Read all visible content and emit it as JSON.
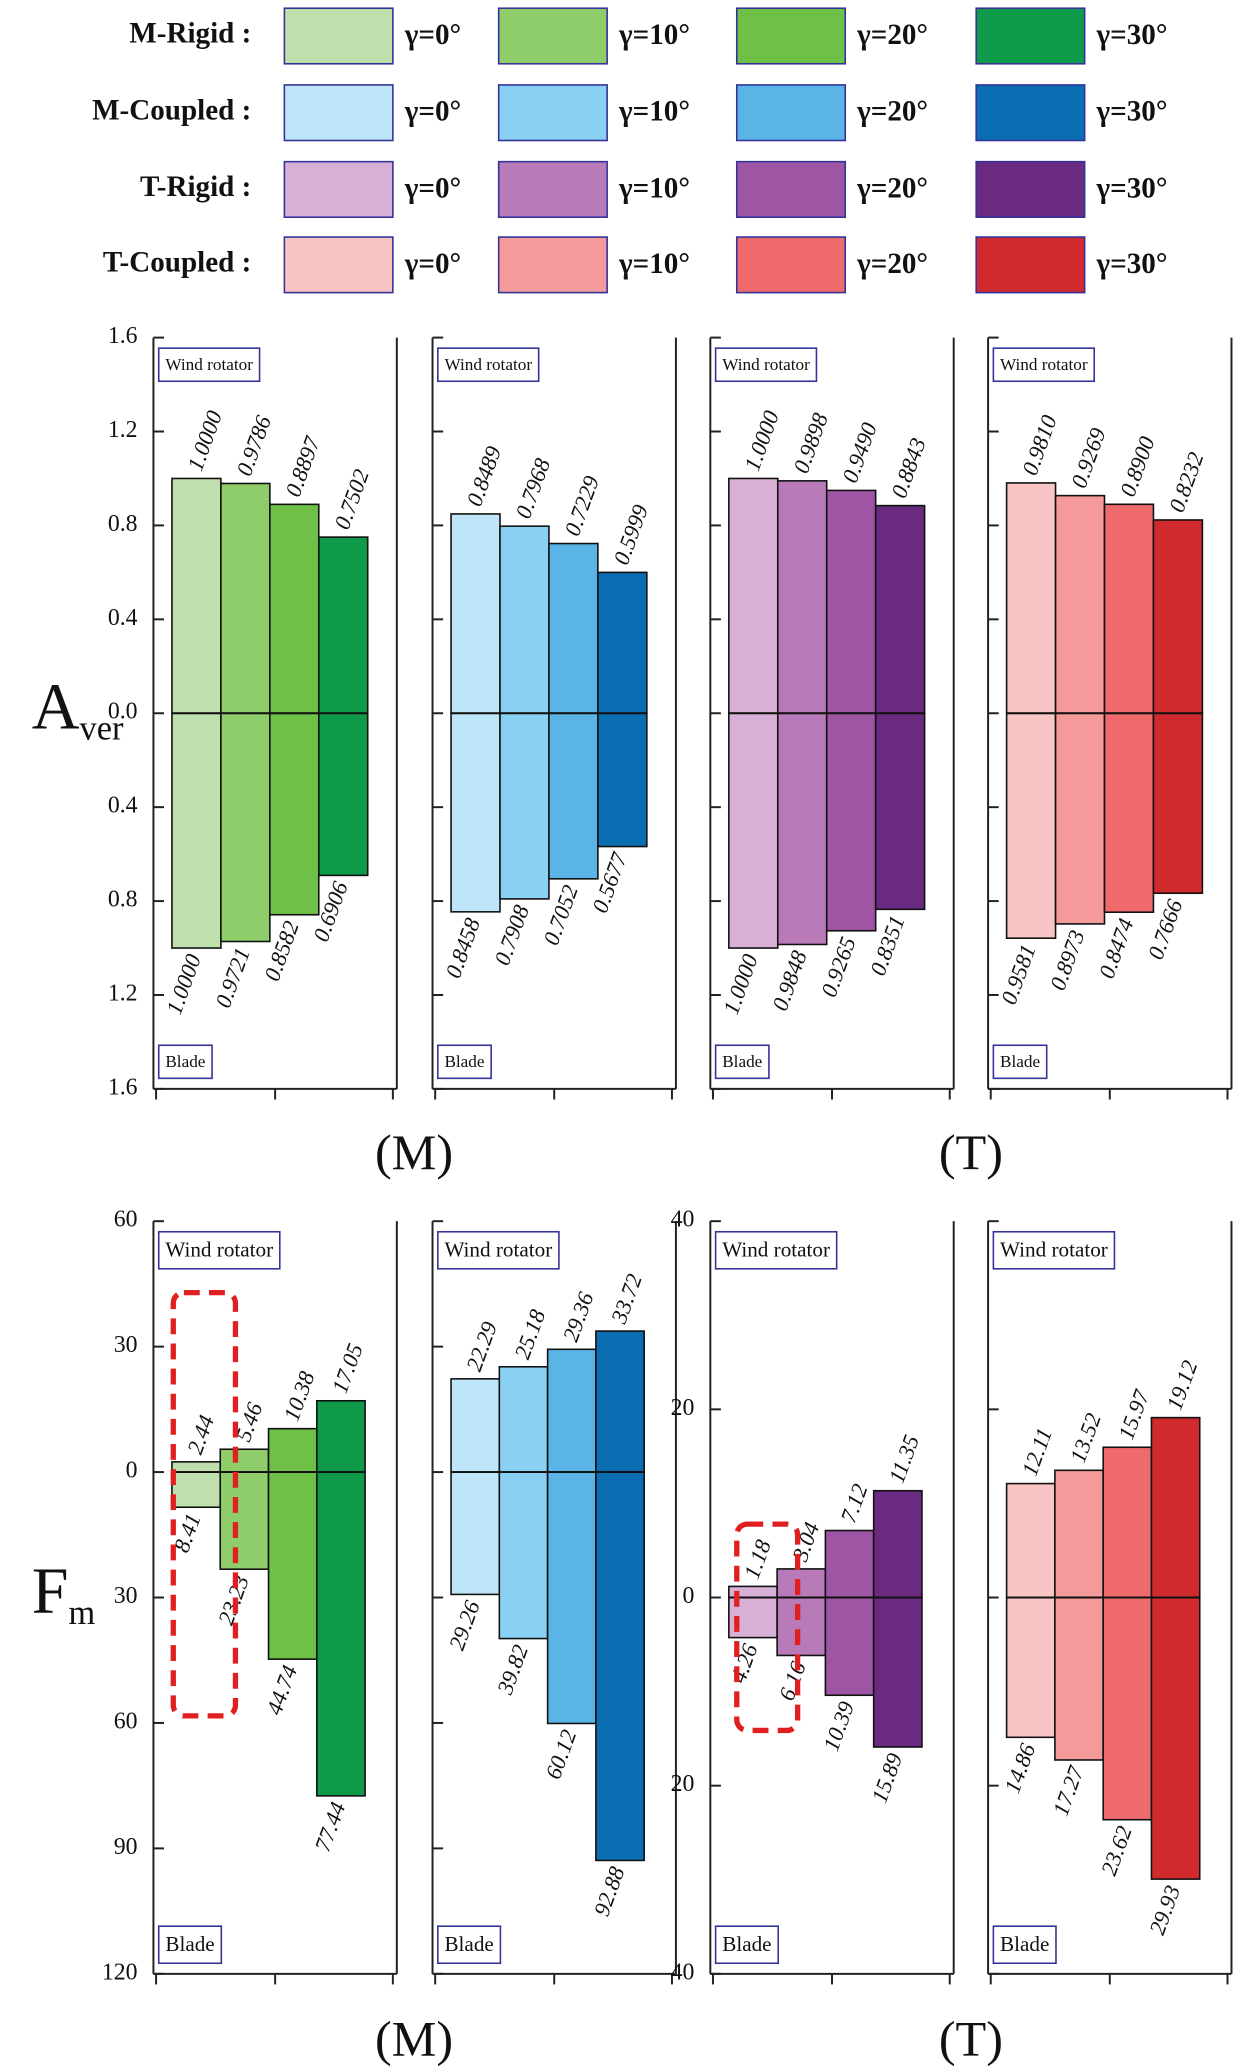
{
  "legend_title": null,
  "chart_data": [
    {
      "type": "bar",
      "name": "M-Rigid :",
      "ylabel": "A",
      "ylabel_sub": "ver",
      "xlabel": "(M)",
      "categories": [
        "Wind rotator",
        "Blade"
      ],
      "ylim": [
        -1.6,
        1.6
      ],
      "yticks": [
        1.6,
        1.2,
        0.8,
        0.4,
        {
          "value": 0,
          "label": "0.0"
        },
        {
          "value": -0.4,
          "label": "0.4"
        },
        {
          "value": -0.8,
          "label": "0.8"
        },
        {
          "value": -1.2,
          "label": "1.2"
        },
        {
          "value": -1.6,
          "label": "1.6"
        }
      ],
      "series": [
        {
          "name": "γ=0°",
          "color": "#bfe0ad",
          "values": [
            1,
            -1
          ],
          "value_labels": [
            "1.0000",
            "1.0000"
          ]
        },
        {
          "name": "γ=10°",
          "color": "#8fcc6a",
          "values": [
            0.9786,
            -0.9721
          ],
          "value_labels": [
            "0.9786",
            "0.9721"
          ]
        },
        {
          "name": "γ=20°",
          "color": "#6ec046",
          "values": [
            0.8897,
            -0.8582
          ],
          "value_labels": [
            "0.8897",
            "0.8582"
          ]
        },
        {
          "name": "γ=30°",
          "color": "#0e9a48",
          "values": [
            0.7502,
            -0.6906
          ],
          "value_labels": [
            "0.7502",
            "0.6906"
          ]
        }
      ]
    },
    {
      "type": "bar",
      "name": "M-Coupled :",
      "categories": [
        "Wind rotator",
        "Blade"
      ],
      "ylim": [
        -1.6,
        1.6
      ],
      "series": [
        {
          "name": "γ=0°",
          "color": "#bfe5f8",
          "values": [
            0.8489,
            -0.8458
          ],
          "value_labels": [
            "0.8489",
            "0.8458"
          ]
        },
        {
          "name": "γ=10°",
          "color": "#8ad0f2",
          "values": [
            0.7968,
            -0.7908
          ],
          "value_labels": [
            "0.7968",
            "0.7908"
          ]
        },
        {
          "name": "γ=20°",
          "color": "#5ab4e6",
          "values": [
            0.7229,
            -0.7052
          ],
          "value_labels": [
            "0.7229",
            "0.7052"
          ]
        },
        {
          "name": "γ=30°",
          "color": "#0b6db2",
          "values": [
            0.5999,
            -0.5677
          ],
          "value_labels": [
            "0.5999",
            "0.5677"
          ]
        }
      ]
    },
    {
      "type": "bar",
      "name": "T-Rigid :",
      "xlabel": "(T)",
      "categories": [
        "Wind rotator",
        "Blade"
      ],
      "ylim": [
        -1.6,
        1.6
      ],
      "series": [
        {
          "name": "γ=0°",
          "color": "#d8b0d6",
          "values": [
            1,
            -1
          ],
          "value_labels": [
            "1.0000",
            "1.0000"
          ]
        },
        {
          "name": "γ=10°",
          "color": "#b87ab8",
          "values": [
            0.9898,
            -0.9848
          ],
          "value_labels": [
            "0.9898",
            "0.9848"
          ]
        },
        {
          "name": "γ=20°",
          "color": "#9e56a4",
          "values": [
            0.949,
            -0.9265
          ],
          "value_labels": [
            "0.9490",
            "0.9265"
          ]
        },
        {
          "name": "γ=30°",
          "color": "#6a2a80",
          "values": [
            0.8843,
            -0.8351
          ],
          "value_labels": [
            "0.8843",
            "0.8351"
          ]
        }
      ]
    },
    {
      "type": "bar",
      "name": "T-Coupled :",
      "categories": [
        "Wind rotator",
        "Blade"
      ],
      "ylim": [
        -1.6,
        1.6
      ],
      "series": [
        {
          "name": "γ=0°",
          "color": "#f8c4c4",
          "values": [
            0.981,
            -0.9581
          ],
          "value_labels": [
            "0.9810",
            "0.9581"
          ]
        },
        {
          "name": "γ=10°",
          "color": "#f49a9a",
          "values": [
            0.9269,
            -0.8973
          ],
          "value_labels": [
            "0.9269",
            "0.8973"
          ]
        },
        {
          "name": "γ=20°",
          "color": "#ef6a6c",
          "values": [
            0.89,
            -0.8474
          ],
          "value_labels": [
            "0.8900",
            "0.8474"
          ]
        },
        {
          "name": "γ=30°",
          "color": "#d02a2e",
          "values": [
            0.8232,
            -0.7666
          ],
          "value_labels": [
            "0.8232",
            "0.7666"
          ]
        }
      ]
    },
    {
      "type": "bar",
      "ylabel": "F",
      "ylabel_sub": "m",
      "xlabel": "(M)",
      "categories": [
        "Wind rotator",
        "Blade"
      ],
      "ylim": [
        -120,
        60
      ],
      "yticks": [
        60,
        30,
        0,
        {
          "value": -30,
          "label": "30"
        },
        {
          "value": -60,
          "label": "60"
        },
        {
          "value": -90,
          "label": "90"
        },
        {
          "value": -120,
          "label": "120"
        }
      ],
      "series": [
        {
          "color": "#bfe0ad",
          "values": [
            2.44,
            -8.41
          ],
          "value_labels": [
            "2.44",
            "8.41"
          ]
        },
        {
          "color": "#8fcc6a",
          "values": [
            5.46,
            -23.23
          ],
          "value_labels": [
            "5.46",
            "23.23"
          ]
        },
        {
          "color": "#6ec046",
          "values": [
            10.38,
            -44.74
          ],
          "value_labels": [
            "10.38",
            "44.74"
          ]
        },
        {
          "color": "#0e9a48",
          "values": [
            17.05,
            -77.44
          ],
          "value_labels": [
            "17.05",
            "77.44"
          ]
        }
      ]
    },
    {
      "type": "bar",
      "categories": [
        "Wind rotator",
        "Blade"
      ],
      "ylim": [
        -120,
        60
      ],
      "series": [
        {
          "color": "#bfe5f8",
          "values": [
            22.29,
            -29.26
          ],
          "value_labels": [
            "22.29",
            "29.26"
          ]
        },
        {
          "color": "#8ad0f2",
          "values": [
            25.18,
            -39.82
          ],
          "value_labels": [
            "25.18",
            "39.82"
          ]
        },
        {
          "color": "#5ab4e6",
          "values": [
            29.36,
            -60.12
          ],
          "value_labels": [
            "29.36",
            "60.12"
          ]
        },
        {
          "color": "#0b6db2",
          "values": [
            33.72,
            -92.88
          ],
          "value_labels": [
            "33.72",
            "92.88"
          ]
        }
      ]
    },
    {
      "type": "bar",
      "xlabel": "(T)",
      "categories": [
        "Wind rotator",
        "Blade"
      ],
      "ylim": [
        -40,
        40
      ],
      "yticks": [
        40,
        20,
        0,
        {
          "value": -20,
          "label": "20"
        },
        {
          "value": -40,
          "label": "40"
        }
      ],
      "series": [
        {
          "color": "#d8b0d6",
          "values": [
            1.18,
            -4.26
          ],
          "value_labels": [
            "1.18",
            "4.26"
          ]
        },
        {
          "color": "#b87ab8",
          "values": [
            3.04,
            -6.16
          ],
          "value_labels": [
            "3.04",
            "6.16"
          ]
        },
        {
          "color": "#9e56a4",
          "values": [
            7.12,
            -10.39
          ],
          "value_labels": [
            "7.12",
            "10.39"
          ]
        },
        {
          "color": "#6a2a80",
          "values": [
            11.35,
            -15.89
          ],
          "value_labels": [
            "11.35",
            "15.89"
          ]
        }
      ]
    },
    {
      "type": "bar",
      "categories": [
        "Wind rotator",
        "Blade"
      ],
      "ylim": [
        -40,
        40
      ],
      "series": [
        {
          "color": "#f8c4c4",
          "values": [
            12.11,
            -14.86
          ],
          "value_labels": [
            "12.11",
            "14.86"
          ]
        },
        {
          "color": "#f49a9a",
          "values": [
            13.52,
            -17.27
          ],
          "value_labels": [
            "13.52",
            "17.27"
          ]
        },
        {
          "color": "#ef6a6c",
          "values": [
            15.97,
            -23.62
          ],
          "value_labels": [
            "15.97",
            "23.62"
          ]
        },
        {
          "color": "#d02a2e",
          "values": [
            19.12,
            -29.93
          ],
          "value_labels": [
            "19.12",
            "29.93"
          ]
        }
      ]
    }
  ]
}
